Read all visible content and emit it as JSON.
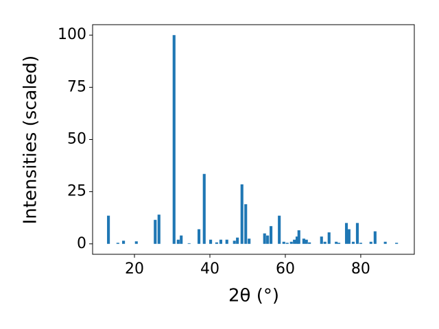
{
  "chart_data": {
    "type": "bar",
    "xlabel": "2θ (°)",
    "ylabel": "Intensities (scaled)",
    "x": [
      13.1,
      15.6,
      17.1,
      20.5,
      25.5,
      26.5,
      30.5,
      31.6,
      32.4,
      34.5,
      37.1,
      38.5,
      40.2,
      41.8,
      42.9,
      44.5,
      46.5,
      47.3,
      48.5,
      49.5,
      50.4,
      54.5,
      55.3,
      56.2,
      58.4,
      59.6,
      60.5,
      61.6,
      62.4,
      63.1,
      63.6,
      64.9,
      65.6,
      66.4,
      69.6,
      70.5,
      71.6,
      73.5,
      74.2,
      76.2,
      76.9,
      78.0,
      79.1,
      80.0,
      82.7,
      83.8,
      86.5,
      89.5
    ],
    "values": [
      13.5,
      0.5,
      1.5,
      1.2,
      11.5,
      14,
      100,
      2,
      4,
      0.3,
      7,
      33.5,
      2,
      0.7,
      2,
      2,
      1.5,
      3,
      28.5,
      19,
      2.5,
      5,
      4,
      8.5,
      13.5,
      1,
      0.5,
      1,
      2,
      3.5,
      6.5,
      2.5,
      2,
      0.7,
      3.5,
      1,
      5.5,
      1,
      0.5,
      10,
      7,
      1,
      10,
      0.5,
      1,
      6,
      1,
      0.5
    ],
    "color": "#1f77b4",
    "xlim": [
      8.9,
      94.2
    ],
    "xticks": [
      20,
      40,
      60,
      80
    ],
    "ylim": [
      -5,
      105
    ],
    "yticks": [
      0,
      25,
      50,
      75,
      100
    ]
  }
}
